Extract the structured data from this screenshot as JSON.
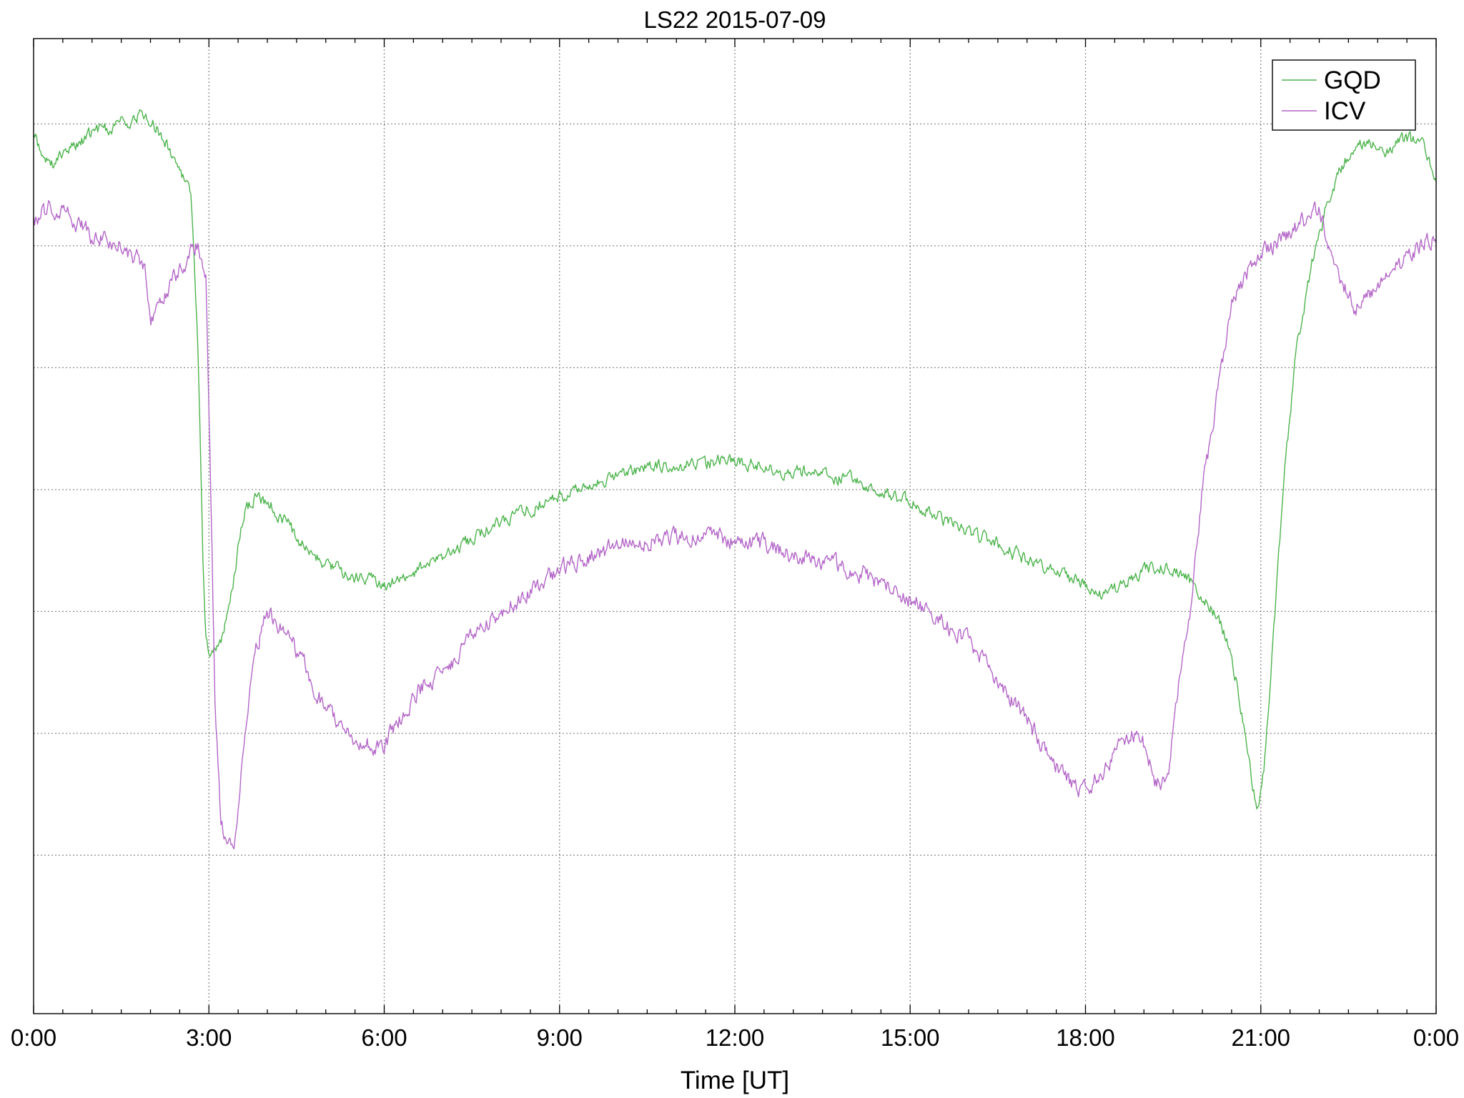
{
  "chart_data": {
    "type": "line",
    "title": "LS22 2015-07-09",
    "xlabel": "Time [UT]",
    "ylabel": "",
    "x_unit": "hours UT",
    "xlim": [
      0,
      24
    ],
    "ylim": [
      0,
      8
    ],
    "x_ticks": [
      0,
      3,
      6,
      9,
      12,
      15,
      18,
      21,
      24
    ],
    "x_tick_labels": [
      "0:00",
      "3:00",
      "6:00",
      "9:00",
      "12:00",
      "15:00",
      "18:00",
      "21:00",
      "0:00"
    ],
    "x_minor_step": 0.5,
    "y_gridlines": [
      1.3,
      2.3,
      3.3,
      4.3,
      5.3,
      6.3,
      7.3
    ],
    "y_tick_labels_shown": false,
    "grid": true,
    "legend_position": "top-right",
    "series": [
      {
        "name": "GQD",
        "color": "#4db34d",
        "noise": 0.045,
        "points": [
          [
            0,
            7.2
          ],
          [
            0.3,
            6.95
          ],
          [
            0.6,
            7.1
          ],
          [
            1.0,
            7.22
          ],
          [
            1.5,
            7.3
          ],
          [
            1.9,
            7.38
          ],
          [
            2.2,
            7.2
          ],
          [
            2.5,
            6.95
          ],
          [
            2.7,
            6.7
          ],
          [
            2.8,
            5.6
          ],
          [
            2.85,
            4.8
          ],
          [
            2.9,
            3.7
          ],
          [
            2.95,
            3.1
          ],
          [
            3.0,
            2.9
          ],
          [
            3.2,
            3.05
          ],
          [
            3.4,
            3.5
          ],
          [
            3.6,
            4.1
          ],
          [
            3.8,
            4.25
          ],
          [
            4.0,
            4.2
          ],
          [
            4.3,
            4.05
          ],
          [
            4.6,
            3.85
          ],
          [
            5.0,
            3.7
          ],
          [
            5.5,
            3.58
          ],
          [
            6.0,
            3.52
          ],
          [
            6.5,
            3.6
          ],
          [
            7.0,
            3.75
          ],
          [
            7.5,
            3.9
          ],
          [
            8.0,
            4.05
          ],
          [
            8.5,
            4.15
          ],
          [
            9.0,
            4.25
          ],
          [
            9.5,
            4.35
          ],
          [
            10.0,
            4.43
          ],
          [
            10.5,
            4.48
          ],
          [
            11.0,
            4.5
          ],
          [
            11.5,
            4.52
          ],
          [
            12.0,
            4.55
          ],
          [
            12.5,
            4.48
          ],
          [
            13.0,
            4.45
          ],
          [
            13.5,
            4.42
          ],
          [
            14.0,
            4.38
          ],
          [
            14.5,
            4.3
          ],
          [
            15.0,
            4.2
          ],
          [
            15.5,
            4.08
          ],
          [
            16.0,
            3.95
          ],
          [
            16.5,
            3.85
          ],
          [
            17.0,
            3.72
          ],
          [
            17.5,
            3.62
          ],
          [
            18.0,
            3.5
          ],
          [
            18.3,
            3.42
          ],
          [
            18.6,
            3.5
          ],
          [
            19.0,
            3.65
          ],
          [
            19.4,
            3.68
          ],
          [
            19.7,
            3.6
          ],
          [
            20.0,
            3.42
          ],
          [
            20.3,
            3.2
          ],
          [
            20.5,
            2.95
          ],
          [
            20.7,
            2.4
          ],
          [
            20.85,
            1.9
          ],
          [
            20.95,
            1.7
          ],
          [
            21.05,
            2.0
          ],
          [
            21.2,
            3.0
          ],
          [
            21.4,
            4.4
          ],
          [
            21.6,
            5.4
          ],
          [
            21.9,
            6.2
          ],
          [
            22.2,
            6.75
          ],
          [
            22.5,
            7.05
          ],
          [
            22.8,
            7.15
          ],
          [
            23.2,
            7.08
          ],
          [
            23.5,
            7.18
          ],
          [
            23.8,
            7.1
          ],
          [
            24.0,
            6.85
          ]
        ]
      },
      {
        "name": "ICV",
        "color": "#b366c7",
        "noise": 0.06,
        "points": [
          [
            0,
            6.5
          ],
          [
            0.3,
            6.62
          ],
          [
            0.6,
            6.55
          ],
          [
            1.0,
            6.38
          ],
          [
            1.5,
            6.3
          ],
          [
            1.9,
            6.15
          ],
          [
            2.0,
            5.7
          ],
          [
            2.2,
            5.9
          ],
          [
            2.5,
            6.1
          ],
          [
            2.8,
            6.3
          ],
          [
            2.95,
            6.0
          ],
          [
            3.0,
            4.9
          ],
          [
            3.05,
            3.9
          ],
          [
            3.1,
            2.6
          ],
          [
            3.2,
            1.6
          ],
          [
            3.3,
            1.4
          ],
          [
            3.45,
            1.45
          ],
          [
            3.6,
            2.2
          ],
          [
            3.8,
            3.0
          ],
          [
            4.0,
            3.3
          ],
          [
            4.3,
            3.15
          ],
          [
            4.7,
            2.8
          ],
          [
            5.0,
            2.5
          ],
          [
            5.4,
            2.3
          ],
          [
            5.8,
            2.2
          ],
          [
            6.0,
            2.2
          ],
          [
            6.3,
            2.45
          ],
          [
            6.7,
            2.7
          ],
          [
            7.2,
            2.9
          ],
          [
            7.5,
            3.1
          ],
          [
            8.0,
            3.3
          ],
          [
            8.5,
            3.45
          ],
          [
            9.0,
            3.65
          ],
          [
            9.5,
            3.75
          ],
          [
            10.0,
            3.82
          ],
          [
            10.5,
            3.88
          ],
          [
            11.0,
            3.9
          ],
          [
            11.5,
            3.92
          ],
          [
            12.0,
            3.88
          ],
          [
            12.5,
            3.85
          ],
          [
            13.0,
            3.78
          ],
          [
            13.5,
            3.7
          ],
          [
            14.0,
            3.65
          ],
          [
            14.5,
            3.55
          ],
          [
            15.0,
            3.4
          ],
          [
            15.5,
            3.25
          ],
          [
            16.0,
            3.05
          ],
          [
            16.5,
            2.75
          ],
          [
            17.0,
            2.4
          ],
          [
            17.5,
            2.05
          ],
          [
            17.8,
            1.85
          ],
          [
            18.0,
            1.85
          ],
          [
            18.3,
            1.98
          ],
          [
            18.6,
            2.2
          ],
          [
            18.8,
            2.3
          ],
          [
            19.0,
            2.2
          ],
          [
            19.2,
            1.9
          ],
          [
            19.4,
            1.9
          ],
          [
            19.6,
            2.7
          ],
          [
            19.8,
            3.3
          ],
          [
            20.0,
            4.3
          ],
          [
            20.3,
            5.2
          ],
          [
            20.5,
            5.8
          ],
          [
            20.8,
            6.1
          ],
          [
            21.2,
            6.3
          ],
          [
            21.6,
            6.45
          ],
          [
            22.0,
            6.6
          ],
          [
            22.3,
            6.1
          ],
          [
            22.6,
            5.8
          ],
          [
            23.0,
            5.95
          ],
          [
            23.4,
            6.15
          ],
          [
            23.7,
            6.3
          ],
          [
            24.0,
            6.35
          ]
        ]
      }
    ]
  }
}
